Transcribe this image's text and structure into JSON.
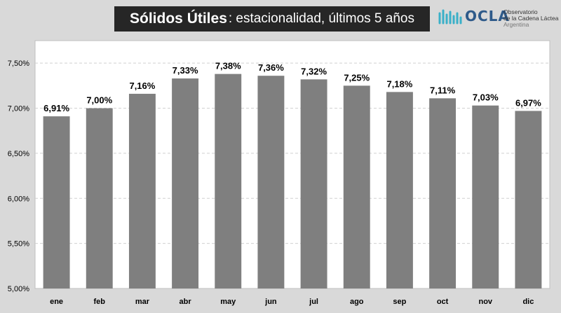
{
  "title": {
    "bold": "Sólidos Útiles",
    "rest": ": estacionalidad, últimos 5 años"
  },
  "logo": {
    "word": "OCLA",
    "line1": "Observatorio",
    "line2": "de la Cadena Láctea",
    "line3": "Argentina",
    "accent_color": "#3ab0c8"
  },
  "colors": {
    "bar": "#7f7f7f",
    "plot_background": "#ffffff",
    "page_background": "#d9d9d9",
    "title_background": "#262626"
  },
  "chart_data": {
    "type": "bar",
    "title": "Sólidos Útiles: estacionalidad, últimos 5 años",
    "categories": [
      "ene",
      "feb",
      "mar",
      "abr",
      "may",
      "jun",
      "jul",
      "ago",
      "sep",
      "oct",
      "nov",
      "dic"
    ],
    "values": [
      6.91,
      7.0,
      7.16,
      7.33,
      7.38,
      7.36,
      7.32,
      7.25,
      7.18,
      7.11,
      7.03,
      6.97
    ],
    "value_labels": [
      "6,91%",
      "7,00%",
      "7,16%",
      "7,33%",
      "7,38%",
      "7,36%",
      "7,32%",
      "7,25%",
      "7,18%",
      "7,11%",
      "7,03%",
      "6,97%"
    ],
    "y_ticks": [
      5.0,
      5.5,
      6.0,
      6.5,
      7.0,
      7.5
    ],
    "y_tick_labels": [
      "5,00%",
      "5,50%",
      "6,00%",
      "6,50%",
      "7,00%",
      "7,50%"
    ],
    "ylim": [
      5.0,
      7.75
    ],
    "xlabel": "",
    "ylabel": "",
    "grid": "horizontal dashed",
    "legend": "none"
  }
}
